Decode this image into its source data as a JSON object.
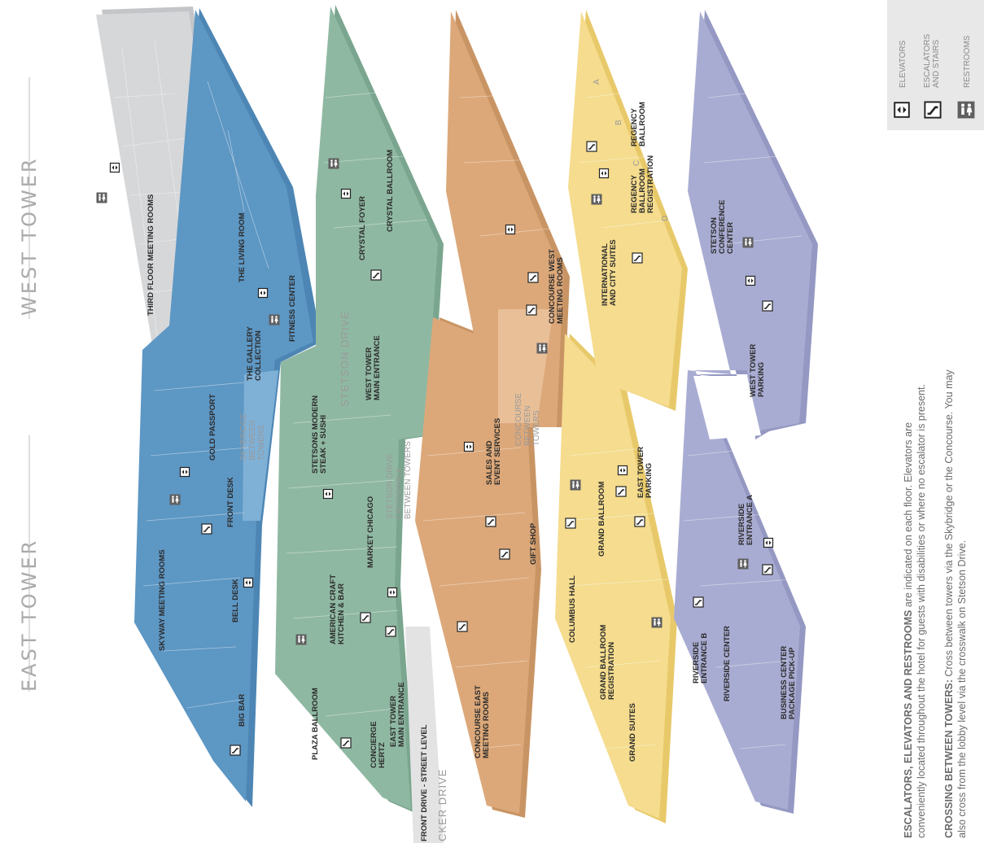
{
  "towers": {
    "west": "WEST TOWER",
    "east": "EAST TOWER"
  },
  "streets": {
    "stetson_drive": "STETSON DRIVE",
    "stetson_crosswalk": [
      "STETSON DRIVE",
      "CROSSWALK",
      "BETWEEN TOWERS"
    ],
    "front_drive": "FRONT DRIVE - STREET LEVEL",
    "wacker_drive": "CKER DRIVE"
  },
  "floors": {
    "third_floor": {
      "color": "#d6d7d9",
      "labels": [
        "THIRD FLOOR MEETING ROOMS"
      ]
    },
    "skyway": {
      "color": "#5d97c4",
      "labels": [
        "THE LIVING ROOM",
        "FITNESS CENTER",
        "THE GALLERY",
        "COLLECTION",
        "SKYBRIDGE",
        "BETWEEN",
        "TOWERS",
        "GOLD PASSPORT",
        "FRONT DESK",
        "SKYWAY MEETING ROOMS",
        "BELL DESK",
        "BIG BAR"
      ]
    },
    "lobby": {
      "color": "#8fb8a2",
      "labels": [
        "CRYSTAL BALLROOM",
        "CRYSTAL FOYER",
        "WEST TOWER",
        "MAIN ENTRANCE",
        "STETSONS MODERN",
        "STEAK + SUSHI",
        "MARKET CHICAGO",
        "AMERICAN CRAFT",
        "KITCHEN & BAR",
        "PLAZA BALLROOM",
        "EAST TOWER",
        "MAIN ENTRANCE",
        "CONCIERGE",
        "HERTZ"
      ]
    },
    "concourse": {
      "color": "#dca879",
      "labels": [
        "CONCOURSE WEST",
        "MEETING ROOMS",
        "CONCOURSE",
        "BETWEEN",
        "TOWERS",
        "SALES AND",
        "EVENT SERVICES",
        "GIFT SHOP",
        "CONCOURSE EAST",
        "MEETING ROOMS"
      ]
    },
    "ballroom": {
      "color": "#f5dc8e",
      "labels": [
        "REGENCY",
        "BALLROOM",
        "REGENCY",
        "BALLROOM",
        "REGISTRATION",
        "INTERNATIONAL",
        "AND CITY SUITES",
        "A",
        "B",
        "C",
        "D",
        "EAST TOWER",
        "PARKING",
        "GRAND BALLROOM",
        "COLUMBUS HALL",
        "GRAND BALLROOM",
        "REGISTRATION",
        "GRAND SUITES"
      ]
    },
    "riverside": {
      "color": "#a9acd2",
      "labels": [
        "STETSON",
        "CONFERENCE",
        "CENTER",
        "WEST TOWER",
        "PARKING",
        "RIVERSIDE",
        "ENTRANCE A",
        "RIVERSIDE",
        "ENTRANCE B",
        "RIVERSIDE CENTER",
        "BUSINESS CENTER",
        "PACKAGE PICK-UP"
      ]
    }
  },
  "legend": {
    "elevators": "ELEVATORS",
    "escalators": [
      "ESCALATORS",
      "AND STAIRS"
    ],
    "restrooms": "RESTROOMS"
  },
  "notes": {
    "n1_title": "ESCALATORS, ELEVATORS AND RESTROOMS",
    "n1_line1": " are indicated on each floor. Elevators are",
    "n1_line2": "conveniently located throughout the hotel for guests with disabilities or where no escalator is present.",
    "n2_title": "CROSSING BETWEEN TOWERS:",
    "n2_line1": " Cross between towers via the Skybridge or the Concourse. You may",
    "n2_line2": "also cross from the lobby level via the crosswalk on Stetson Drive."
  },
  "icon_names": [
    "elevator-icon",
    "escalator-icon",
    "restroom-icon"
  ]
}
